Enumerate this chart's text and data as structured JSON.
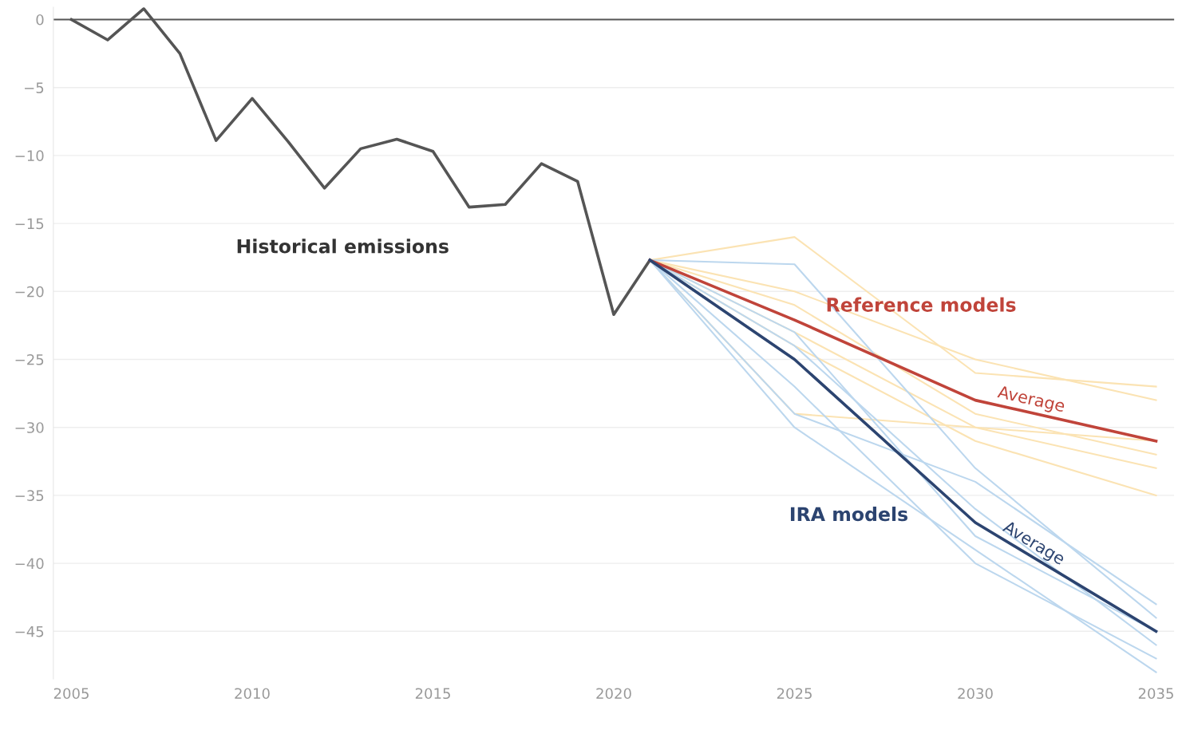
{
  "chart_data": {
    "type": "line",
    "series": [
      {
        "name": "Historical emissions",
        "color": "#555555",
        "x": [
          2005,
          2006,
          2007,
          2008,
          2009,
          2010,
          2011,
          2012,
          2013,
          2014,
          2015,
          2016,
          2017,
          2018,
          2019,
          2020,
          2021
        ],
        "values": [
          0,
          -1.5,
          0.8,
          -2.5,
          -8.9,
          -5.8,
          -9,
          -12.4,
          -9.5,
          -8.8,
          -9.7,
          -13.8,
          -13.6,
          -10.6,
          -11.9,
          -21.7,
          -17.7
        ]
      },
      {
        "color": "#fbe3b3",
        "x": [
          2021,
          2025,
          2030,
          2035
        ],
        "values": [
          -17.7,
          -16,
          -26,
          -27
        ]
      },
      {
        "color": "#fbe3b3",
        "x": [
          2021,
          2025,
          2030,
          2035
        ],
        "values": [
          -17.7,
          -20,
          -25,
          -28
        ]
      },
      {
        "color": "#fbe3b3",
        "x": [
          2021,
          2025,
          2030,
          2035
        ],
        "values": [
          -17.7,
          -21,
          -29,
          -32
        ]
      },
      {
        "color": "#fbe3b3",
        "x": [
          2021,
          2025,
          2030,
          2035
        ],
        "values": [
          -17.7,
          -29,
          -30,
          -31
        ]
      },
      {
        "color": "#fbe3b3",
        "x": [
          2021,
          2025,
          2030,
          2035
        ],
        "values": [
          -17.7,
          -23,
          -30,
          -33
        ]
      },
      {
        "color": "#fbe3b3",
        "x": [
          2021,
          2025,
          2030,
          2035
        ],
        "values": [
          -17.7,
          -24,
          -31,
          -35
        ]
      },
      {
        "color": "#bcd7ee",
        "x": [
          2021,
          2025,
          2030,
          2035
        ],
        "values": [
          -17.7,
          -18,
          -33,
          -44
        ]
      },
      {
        "color": "#bcd7ee",
        "x": [
          2021,
          2025,
          2030,
          2035
        ],
        "values": [
          -17.7,
          -29,
          -34,
          -43
        ]
      },
      {
        "color": "#bcd7ee",
        "x": [
          2021,
          2025,
          2030,
          2035
        ],
        "values": [
          -17.7,
          -30,
          -39,
          -48
        ]
      },
      {
        "color": "#bcd7ee",
        "x": [
          2021,
          2025,
          2030,
          2035
        ],
        "values": [
          -17.7,
          -24,
          -36,
          -46
        ]
      },
      {
        "color": "#bcd7ee",
        "x": [
          2021,
          2025,
          2030,
          2035
        ],
        "values": [
          -17.7,
          -23,
          -38,
          -45
        ]
      },
      {
        "color": "#bcd7ee",
        "x": [
          2021,
          2025,
          2030,
          2035
        ],
        "values": [
          -17.7,
          -27,
          -40,
          -47
        ]
      },
      {
        "name": "Average",
        "color": "#c0443a",
        "x": [
          2021,
          2025,
          2030,
          2035
        ],
        "values": [
          -17.7,
          -22.1,
          -28,
          -31
        ]
      },
      {
        "name": "Average",
        "color": "#2c4470",
        "x": [
          2021,
          2025,
          2030,
          2035
        ],
        "values": [
          -17.7,
          -25,
          -37,
          -45
        ]
      }
    ],
    "annotations": [
      "Reference models",
      "IRA models"
    ],
    "xlim": [
      2004.5,
      2035.5
    ],
    "ylim": [
      -48.5,
      0.9
    ],
    "xticks": [
      2005,
      2010,
      2015,
      2020,
      2025,
      2030,
      2035
    ],
    "yticks": [
      0,
      -5,
      -10,
      -15,
      -20,
      -25,
      -30,
      -35,
      -40,
      -45
    ],
    "ref_lines": [
      {
        "axis": "y",
        "value": 0,
        "color": "#555555"
      }
    ],
    "grid": "y",
    "legend": false,
    "marker": "none",
    "line_style": "solid"
  }
}
